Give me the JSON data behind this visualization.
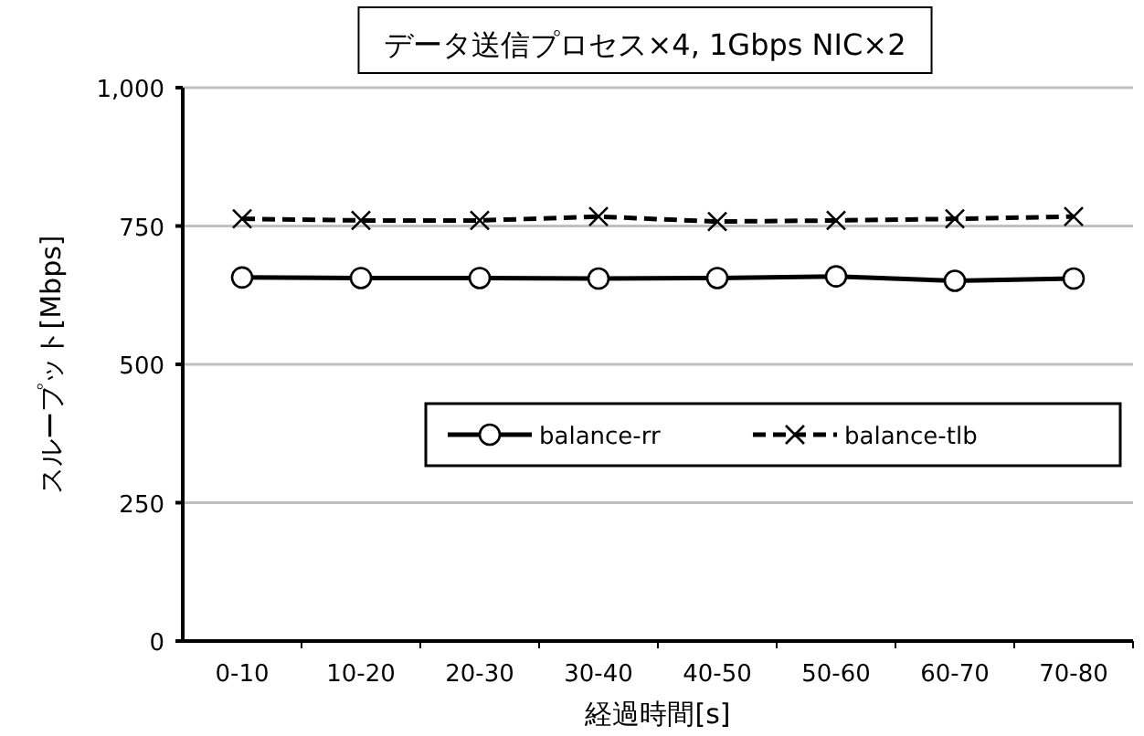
{
  "chart_data": {
    "type": "line",
    "title": "データ送信プロセス×4, 1Gbps NIC×2",
    "xlabel": "経過時間[s]",
    "ylabel": "スループット[Mbps]",
    "categories": [
      "0-10",
      "10-20",
      "20-30",
      "30-40",
      "40-50",
      "50-60",
      "60-70",
      "70-80"
    ],
    "series": [
      {
        "name": "balance-rr",
        "color": "#000000",
        "marker": "circle",
        "line_style": "solid",
        "values": [
          657,
          656,
          656,
          655,
          656,
          659,
          651,
          655
        ]
      },
      {
        "name": "balance-tlb",
        "color": "#000000",
        "marker": "cross",
        "line_style": "dashed",
        "values": [
          763,
          760,
          760,
          767,
          758,
          760,
          763,
          767
        ]
      }
    ],
    "ylim": [
      0,
      1000
    ],
    "yticks": [
      {
        "value": 0,
        "label": "0"
      },
      {
        "value": 250,
        "label": "250"
      },
      {
        "value": 500,
        "label": "500"
      },
      {
        "value": 750,
        "label": "750"
      },
      {
        "value": 1000,
        "label": "1,000"
      }
    ],
    "grid": "y",
    "legend": "right"
  }
}
